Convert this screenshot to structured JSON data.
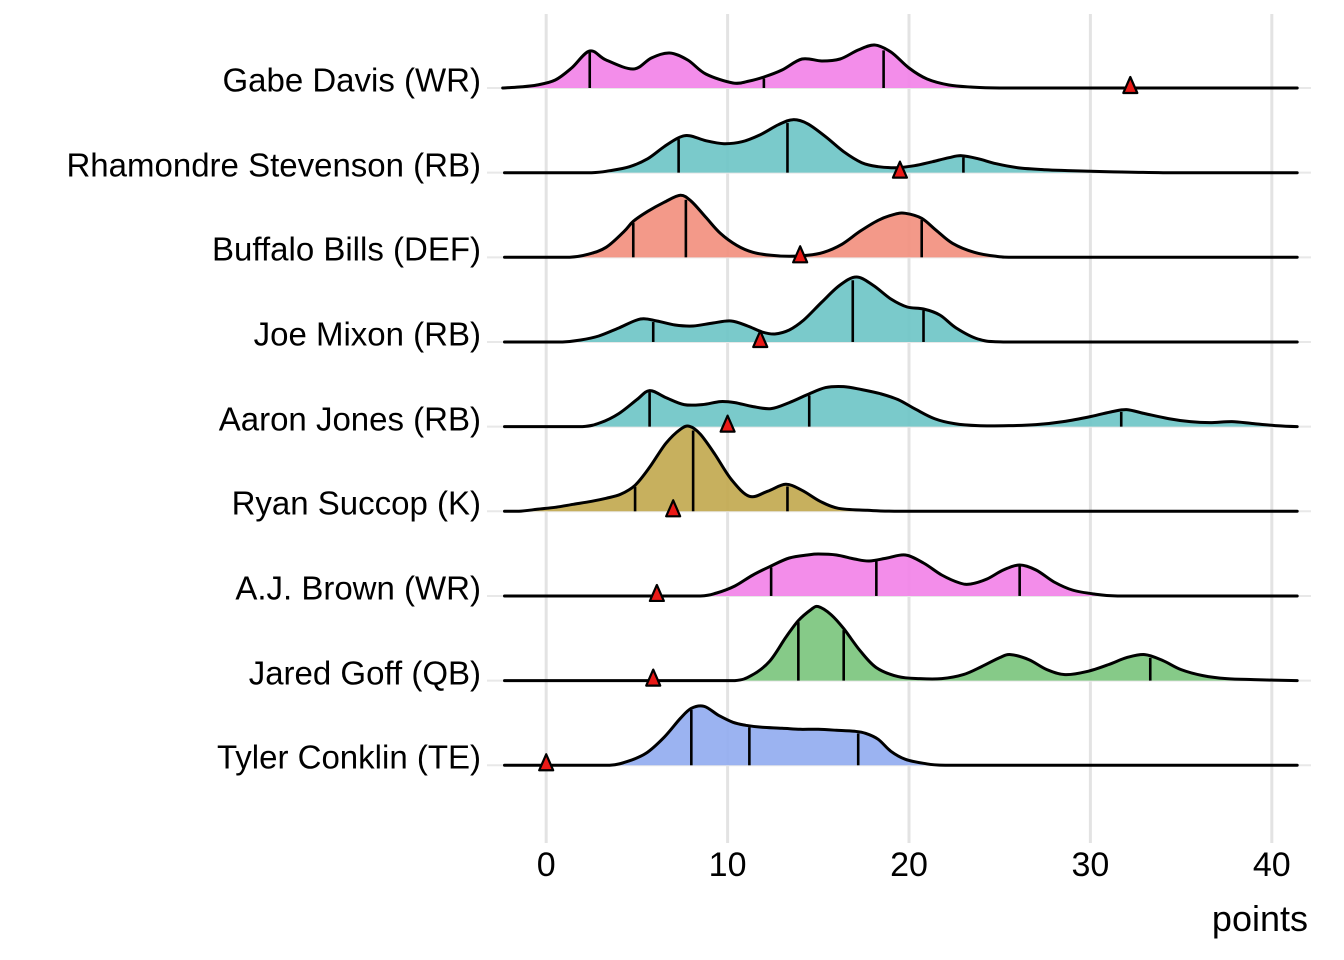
{
  "axis": {
    "xlabel": "points",
    "tick_labels": [
      "0",
      "10",
      "20",
      "30",
      "40"
    ]
  },
  "colors": {
    "background": "#ffffff",
    "gridline": "#e3e3e3",
    "row_baseline": "#e8e8e8",
    "curve_stroke": "#000000",
    "marker_fill": "#ea1a17",
    "marker_stroke": "#000000"
  },
  "chart_data": {
    "type": "ridgeline",
    "xlabel": "points",
    "x_ticks": [
      0,
      10,
      20,
      30,
      40
    ],
    "x_range_points": [
      -3,
      44
    ],
    "grid": "vertical-only",
    "marker": {
      "shape": "triangle",
      "color": "#ea1a17",
      "meaning": "actual points scored"
    },
    "rows": [
      {
        "label": "Gabe Davis (WR)",
        "slug": "gabe-davis",
        "color": "#f283e8",
        "quantile_lines": [
          2.4,
          12.0,
          18.6
        ],
        "actual_points": 32.2,
        "density": [
          [
            -2.4,
            0
          ],
          [
            -1.5,
            1
          ],
          [
            -0.5,
            3
          ],
          [
            0.5,
            8
          ],
          [
            1.4,
            20
          ],
          [
            2.4,
            37
          ],
          [
            3.3,
            28
          ],
          [
            4.8,
            19
          ],
          [
            5.8,
            30
          ],
          [
            6.8,
            35
          ],
          [
            7.8,
            28
          ],
          [
            8.8,
            14
          ],
          [
            10.3,
            5
          ],
          [
            11.2,
            7
          ],
          [
            12.0,
            11
          ],
          [
            13.0,
            18
          ],
          [
            14.1,
            29
          ],
          [
            15.2,
            27
          ],
          [
            16.2,
            29
          ],
          [
            17.2,
            38
          ],
          [
            18.1,
            43
          ],
          [
            19.0,
            36
          ],
          [
            20.0,
            20
          ],
          [
            21.0,
            9
          ],
          [
            22.2,
            3
          ],
          [
            23.4,
            1
          ],
          [
            25,
            0
          ],
          [
            30,
            0
          ],
          [
            35,
            0
          ],
          [
            41.4,
            0
          ]
        ]
      },
      {
        "label": "Rhamondre Stevenson (RB)",
        "slug": "rhamondre-stevenson",
        "color": "#6fc6c7",
        "quantile_lines": [
          7.3,
          13.3,
          23.0
        ],
        "actual_points": 19.5,
        "density": [
          [
            -2.3,
            0
          ],
          [
            0,
            0
          ],
          [
            2.5,
            0
          ],
          [
            3.5,
            2
          ],
          [
            4.6,
            6
          ],
          [
            5.6,
            14
          ],
          [
            6.5,
            26
          ],
          [
            7.3,
            35
          ],
          [
            7.9,
            37
          ],
          [
            8.8,
            32
          ],
          [
            9.8,
            29
          ],
          [
            10.8,
            31
          ],
          [
            11.8,
            38
          ],
          [
            12.8,
            48
          ],
          [
            13.6,
            53
          ],
          [
            14.4,
            49
          ],
          [
            15.4,
            36
          ],
          [
            16.4,
            21
          ],
          [
            17.4,
            10
          ],
          [
            18.3,
            6
          ],
          [
            19.3,
            5
          ],
          [
            20.3,
            7
          ],
          [
            21.3,
            11
          ],
          [
            22.2,
            15
          ],
          [
            22.9,
            17
          ],
          [
            23.8,
            14
          ],
          [
            24.8,
            9
          ],
          [
            26,
            5
          ],
          [
            27.5,
            3
          ],
          [
            29,
            2
          ],
          [
            31,
            1
          ],
          [
            34,
            0
          ],
          [
            38,
            0
          ],
          [
            41.4,
            0
          ]
        ]
      },
      {
        "label": "Buffalo Bills (DEF)",
        "slug": "buffalo-bills",
        "color": "#f2907f",
        "quantile_lines": [
          4.8,
          7.7,
          20.7
        ],
        "actual_points": 14.0,
        "density": [
          [
            -2.3,
            0
          ],
          [
            -0.5,
            0
          ],
          [
            1.3,
            0
          ],
          [
            2.3,
            3
          ],
          [
            3.3,
            10
          ],
          [
            4.3,
            26
          ],
          [
            4.8,
            36
          ],
          [
            5.6,
            46
          ],
          [
            6.5,
            55
          ],
          [
            7.4,
            62
          ],
          [
            8.0,
            56
          ],
          [
            8.8,
            40
          ],
          [
            9.6,
            24
          ],
          [
            10.5,
            12
          ],
          [
            11.4,
            5
          ],
          [
            12.4,
            2
          ],
          [
            13.4,
            1
          ],
          [
            14.4,
            2
          ],
          [
            15.3,
            5
          ],
          [
            16.3,
            13
          ],
          [
            17.3,
            26
          ],
          [
            18.3,
            37
          ],
          [
            19.2,
            43
          ],
          [
            19.8,
            44
          ],
          [
            20.7,
            39
          ],
          [
            21.5,
            27
          ],
          [
            22.4,
            14
          ],
          [
            23.6,
            5
          ],
          [
            24.8,
            1
          ],
          [
            26,
            0
          ],
          [
            30,
            0
          ],
          [
            35,
            0
          ],
          [
            41.4,
            0
          ]
        ]
      },
      {
        "label": "Joe Mixon (RB)",
        "slug": "joe-mixon",
        "color": "#6fc6c7",
        "quantile_lines": [
          5.9,
          16.9,
          20.8
        ],
        "actual_points": 11.8,
        "density": [
          [
            -2.3,
            0
          ],
          [
            -0.7,
            0
          ],
          [
            0.9,
            0
          ],
          [
            1.9,
            2
          ],
          [
            2.9,
            6
          ],
          [
            4.0,
            14
          ],
          [
            5.2,
            23
          ],
          [
            6.1,
            21
          ],
          [
            7.1,
            17
          ],
          [
            8.1,
            16
          ],
          [
            9.2,
            19
          ],
          [
            10.2,
            21
          ],
          [
            11.1,
            16
          ],
          [
            11.9,
            10
          ],
          [
            12.6,
            8
          ],
          [
            13.4,
            12
          ],
          [
            14.2,
            22
          ],
          [
            15.2,
            40
          ],
          [
            16.2,
            57
          ],
          [
            17.1,
            65
          ],
          [
            18.0,
            57
          ],
          [
            19.0,
            43
          ],
          [
            19.9,
            35
          ],
          [
            20.8,
            33
          ],
          [
            21.7,
            27
          ],
          [
            22.6,
            14
          ],
          [
            23.8,
            3
          ],
          [
            25.2,
            0
          ],
          [
            30,
            0
          ],
          [
            35,
            0
          ],
          [
            41.4,
            0
          ]
        ]
      },
      {
        "label": "Aaron Jones (RB)",
        "slug": "aaron-jones",
        "color": "#6fc6c7",
        "quantile_lines": [
          5.7,
          14.5,
          31.7
        ],
        "actual_points": 10.0,
        "density": [
          [
            -2.3,
            0
          ],
          [
            0,
            0
          ],
          [
            2.0,
            0
          ],
          [
            3.0,
            4
          ],
          [
            4.0,
            13
          ],
          [
            5.0,
            27
          ],
          [
            5.7,
            36
          ],
          [
            6.6,
            29
          ],
          [
            7.6,
            22
          ],
          [
            8.6,
            22
          ],
          [
            9.6,
            25
          ],
          [
            10.4,
            24
          ],
          [
            11.4,
            20
          ],
          [
            12.4,
            18
          ],
          [
            13.4,
            24
          ],
          [
            14.4,
            32
          ],
          [
            15.4,
            39
          ],
          [
            16.4,
            40
          ],
          [
            17.4,
            37
          ],
          [
            18.4,
            33
          ],
          [
            19.4,
            27
          ],
          [
            20.4,
            17
          ],
          [
            21.4,
            8
          ],
          [
            22.5,
            3
          ],
          [
            23.8,
            1
          ],
          [
            25.5,
            1
          ],
          [
            27.0,
            2
          ],
          [
            28.5,
            5
          ],
          [
            30.0,
            10
          ],
          [
            31.2,
            15
          ],
          [
            32.0,
            17
          ],
          [
            33.0,
            13
          ],
          [
            34.3,
            8
          ],
          [
            35.5,
            5
          ],
          [
            36.6,
            4
          ],
          [
            37.8,
            5
          ],
          [
            39.0,
            3
          ],
          [
            40.2,
            1
          ],
          [
            41.4,
            0
          ]
        ]
      },
      {
        "label": "Ryan Succop (K)",
        "slug": "ryan-succop",
        "color": "#c2a950",
        "quantile_lines": [
          4.9,
          8.1,
          13.3
        ],
        "actual_points": 7.0,
        "density": [
          [
            -2.3,
            0
          ],
          [
            -1.5,
            0
          ],
          [
            -0.5,
            2
          ],
          [
            0.5,
            4
          ],
          [
            1.5,
            7
          ],
          [
            2.5,
            10
          ],
          [
            3.3,
            13
          ],
          [
            4.1,
            17
          ],
          [
            4.9,
            26
          ],
          [
            5.7,
            44
          ],
          [
            6.6,
            68
          ],
          [
            7.4,
            82
          ],
          [
            7.9,
            85
          ],
          [
            8.5,
            77
          ],
          [
            9.3,
            57
          ],
          [
            10.2,
            32
          ],
          [
            11.2,
            15
          ],
          [
            12.2,
            20
          ],
          [
            13.2,
            27
          ],
          [
            14.1,
            21
          ],
          [
            15.1,
            10
          ],
          [
            16.1,
            3
          ],
          [
            17.7,
            1
          ],
          [
            19.5,
            0
          ],
          [
            25,
            0
          ],
          [
            30,
            0
          ],
          [
            35,
            0
          ],
          [
            41.4,
            0
          ]
        ]
      },
      {
        "label": "A.J. Brown (WR)",
        "slug": "aj-brown",
        "color": "#f283e8",
        "quantile_lines": [
          12.4,
          18.2,
          26.1
        ],
        "actual_points": 6.1,
        "density": [
          [
            -2.3,
            0
          ],
          [
            0,
            0
          ],
          [
            3,
            0
          ],
          [
            6,
            0
          ],
          [
            8.5,
            0
          ],
          [
            9.4,
            3
          ],
          [
            10.4,
            10
          ],
          [
            11.4,
            21
          ],
          [
            12.4,
            30
          ],
          [
            13.4,
            38
          ],
          [
            14.4,
            41
          ],
          [
            15.0,
            42
          ],
          [
            16.0,
            41
          ],
          [
            17.0,
            37
          ],
          [
            17.8,
            35
          ],
          [
            18.8,
            38
          ],
          [
            19.8,
            41
          ],
          [
            20.8,
            33
          ],
          [
            21.8,
            21
          ],
          [
            22.8,
            13
          ],
          [
            23.4,
            12
          ],
          [
            24.3,
            17
          ],
          [
            25.2,
            26
          ],
          [
            26.1,
            31
          ],
          [
            27.0,
            26
          ],
          [
            28.0,
            14
          ],
          [
            29.0,
            6
          ],
          [
            30.2,
            2
          ],
          [
            31.5,
            0
          ],
          [
            35,
            0
          ],
          [
            41.4,
            0
          ]
        ]
      },
      {
        "label": "Jared Goff (QB)",
        "slug": "jared-goff",
        "color": "#7cc57e",
        "quantile_lines": [
          13.9,
          16.4,
          33.3
        ],
        "actual_points": 5.9,
        "density": [
          [
            -2.3,
            0
          ],
          [
            0,
            0
          ],
          [
            3,
            0
          ],
          [
            6,
            0
          ],
          [
            8.5,
            0
          ],
          [
            10.4,
            0
          ],
          [
            11.3,
            5
          ],
          [
            12.3,
            19
          ],
          [
            13.2,
            43
          ],
          [
            13.9,
            60
          ],
          [
            14.6,
            71
          ],
          [
            15.0,
            74
          ],
          [
            15.7,
            66
          ],
          [
            16.4,
            52
          ],
          [
            17.3,
            30
          ],
          [
            18.2,
            13
          ],
          [
            19.4,
            4
          ],
          [
            20.6,
            2
          ],
          [
            21.8,
            2
          ],
          [
            23.0,
            6
          ],
          [
            24.0,
            14
          ],
          [
            25.0,
            23
          ],
          [
            25.6,
            26
          ],
          [
            26.6,
            21
          ],
          [
            27.6,
            11
          ],
          [
            28.6,
            6
          ],
          [
            29.8,
            9
          ],
          [
            31.0,
            16
          ],
          [
            32.0,
            23
          ],
          [
            33.0,
            26
          ],
          [
            34.0,
            20
          ],
          [
            35.0,
            11
          ],
          [
            36.2,
            5
          ],
          [
            37.5,
            2
          ],
          [
            39.0,
            1
          ],
          [
            41.4,
            0
          ]
        ]
      },
      {
        "label": "Tyler Conklin (TE)",
        "slug": "tyler-conklin",
        "color": "#93acf0",
        "quantile_lines": [
          8.0,
          11.2,
          17.2
        ],
        "actual_points": 0.0,
        "density": [
          [
            -2.3,
            0
          ],
          [
            0,
            0
          ],
          [
            1.7,
            0
          ],
          [
            3.5,
            0
          ],
          [
            4.5,
            4
          ],
          [
            5.5,
            12
          ],
          [
            6.5,
            28
          ],
          [
            7.4,
            47
          ],
          [
            8.0,
            57
          ],
          [
            8.7,
            59
          ],
          [
            9.5,
            50
          ],
          [
            10.3,
            43
          ],
          [
            11.0,
            40
          ],
          [
            11.9,
            38
          ],
          [
            13.0,
            37
          ],
          [
            14.0,
            36
          ],
          [
            15.0,
            36
          ],
          [
            16.0,
            35
          ],
          [
            17.0,
            34
          ],
          [
            17.6,
            32
          ],
          [
            18.3,
            26
          ],
          [
            19.0,
            14
          ],
          [
            19.8,
            6
          ],
          [
            20.8,
            2
          ],
          [
            22.0,
            0
          ],
          [
            26,
            0
          ],
          [
            31,
            0
          ],
          [
            36,
            0
          ],
          [
            41.4,
            0
          ]
        ]
      }
    ]
  }
}
